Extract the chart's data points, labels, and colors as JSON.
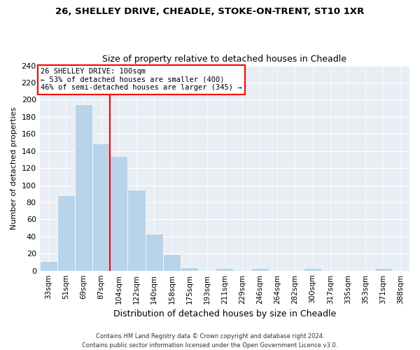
{
  "title1": "26, SHELLEY DRIVE, CHEADLE, STOKE-ON-TRENT, ST10 1XR",
  "title2": "Size of property relative to detached houses in Cheadle",
  "xlabel": "Distribution of detached houses by size in Cheadle",
  "ylabel": "Number of detached properties",
  "bin_labels": [
    "33sqm",
    "51sqm",
    "69sqm",
    "87sqm",
    "104sqm",
    "122sqm",
    "140sqm",
    "158sqm",
    "175sqm",
    "193sqm",
    "211sqm",
    "229sqm",
    "246sqm",
    "264sqm",
    "282sqm",
    "300sqm",
    "317sqm",
    "335sqm",
    "353sqm",
    "371sqm",
    "388sqm"
  ],
  "bar_heights": [
    11,
    88,
    195,
    149,
    134,
    95,
    43,
    19,
    4,
    0,
    3,
    0,
    3,
    0,
    0,
    3,
    0,
    0,
    0,
    3,
    0
  ],
  "bar_color": "#b8d4ea",
  "vline_color": "red",
  "vline_pos": 3.5,
  "annotation_title": "26 SHELLEY DRIVE: 100sqm",
  "annotation_line1": "← 53% of detached houses are smaller (400)",
  "annotation_line2": "46% of semi-detached houses are larger (345) →",
  "ylim": [
    0,
    240
  ],
  "yticks": [
    0,
    20,
    40,
    60,
    80,
    100,
    120,
    140,
    160,
    180,
    200,
    220,
    240
  ],
  "footer1": "Contains HM Land Registry data © Crown copyright and database right 2024.",
  "footer2": "Contains public sector information licensed under the Open Government Licence v3.0.",
  "bg_color": "#e8eef4"
}
